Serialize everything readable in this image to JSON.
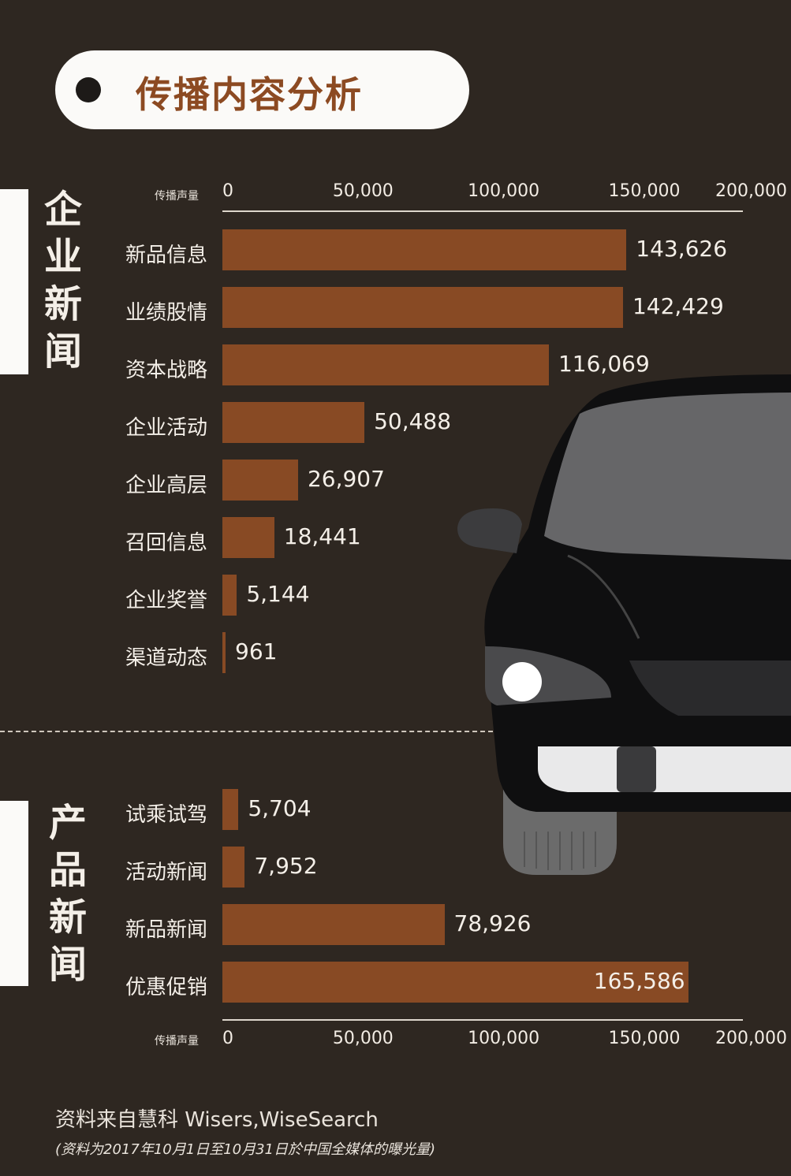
{
  "title": "传播内容分析",
  "sections": {
    "company": "企业新闻",
    "product": "产品新闻"
  },
  "axis": {
    "label": "传播声量",
    "ticks": [
      "0",
      "50,000",
      "100,000",
      "150,000",
      "200,000"
    ]
  },
  "colors": {
    "background": "#2e2721",
    "bar": "#884a24",
    "title_text": "#8c4a22"
  },
  "chart_data": [
    {
      "type": "bar",
      "orientation": "horizontal",
      "section": "企业新闻",
      "categories": [
        "新品信息",
        "业绩股情",
        "资本战略",
        "企业活动",
        "企业高层",
        "召回信息",
        "企业奖誉",
        "渠道动态"
      ],
      "values": [
        143626,
        142429,
        116069,
        50488,
        26907,
        18441,
        5144,
        961
      ],
      "value_labels": [
        "143,626",
        "142,429",
        "116,069",
        "50,488",
        "26,907",
        "18,441",
        "5,144",
        "961"
      ],
      "xlabel": "传播声量",
      "xlim": [
        0,
        200000
      ],
      "axis_position": "top"
    },
    {
      "type": "bar",
      "orientation": "horizontal",
      "section": "产品新闻",
      "categories": [
        "试乘试驾",
        "活动新闻",
        "新品新闻",
        "优惠促销"
      ],
      "values": [
        5704,
        7952,
        78926,
        165586
      ],
      "value_labels": [
        "5,704",
        "7,952",
        "78,926",
        "165,586"
      ],
      "xlabel": "传播声量",
      "xlim": [
        0,
        200000
      ],
      "axis_position": "bottom"
    }
  ],
  "footer": {
    "source": "资料来自慧科 Wisers,WiseSearch",
    "note": "(资料为2017年10月1日至10月31日於中国全媒体的曝光量)"
  }
}
